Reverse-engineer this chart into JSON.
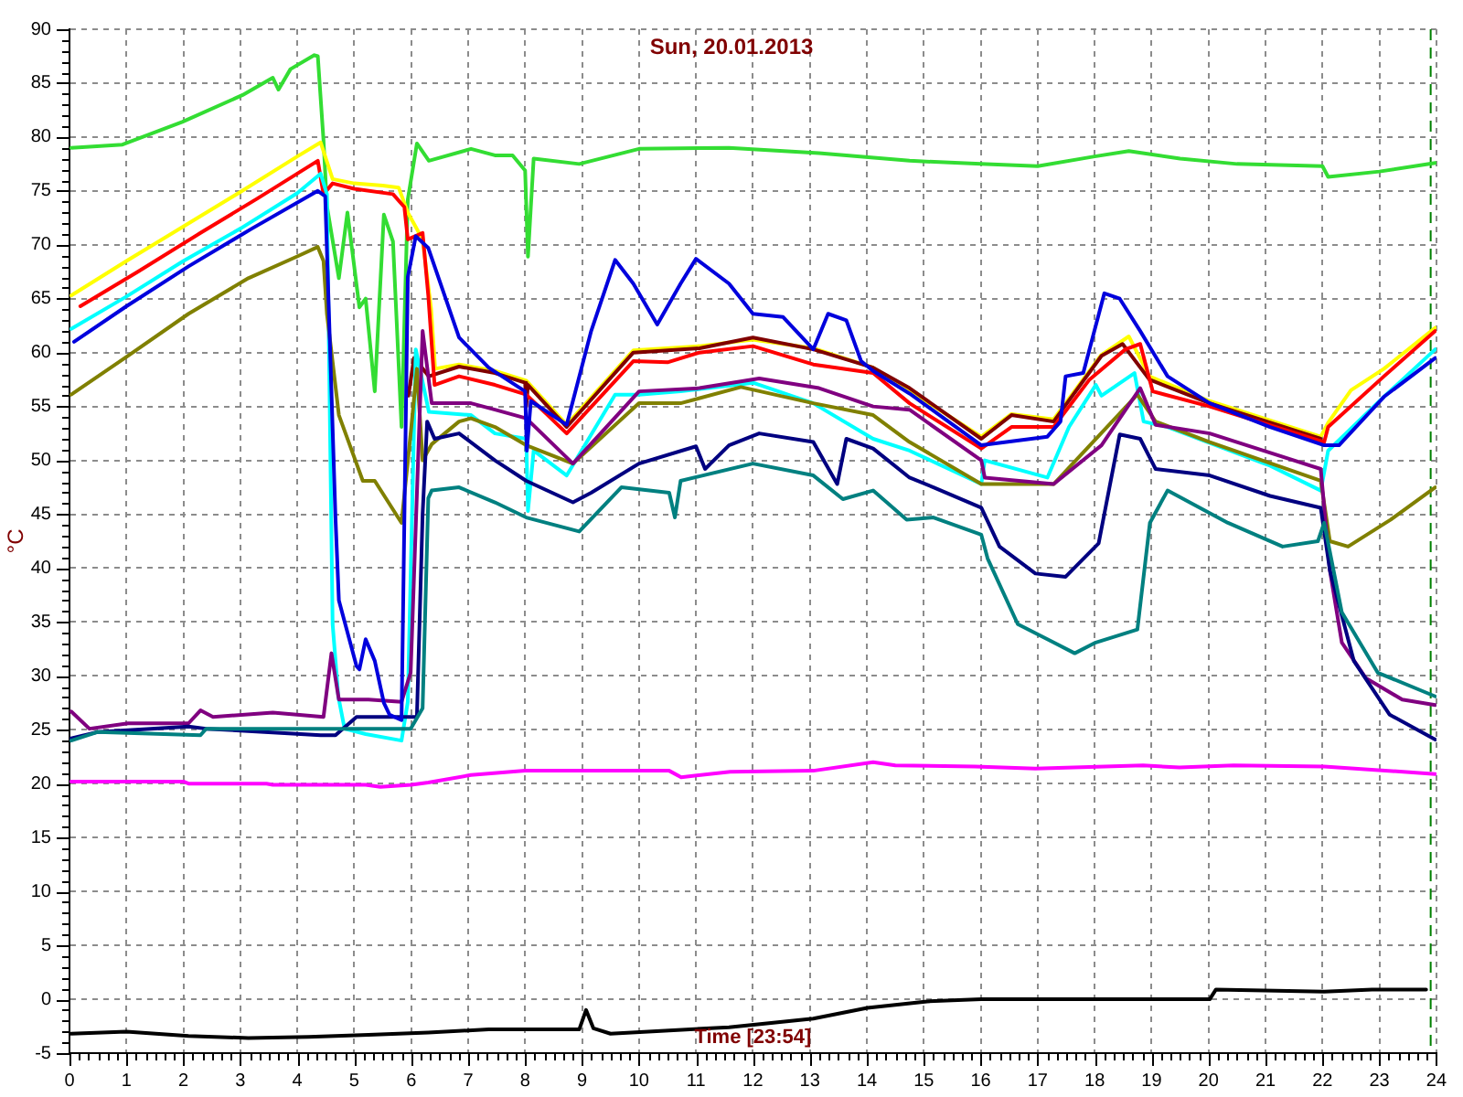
{
  "chart_data": {
    "type": "line",
    "title": "Sun, 20.01.2013",
    "xlabel": "Time [23:54]",
    "ylabel": "°C",
    "xlim": [
      0,
      24
    ],
    "xticks": [
      0,
      {
        "value": 0.167,
        "label": null
      },
      {
        "value": 0.333,
        "label": null
      },
      {
        "value": 0.5,
        "label": null
      },
      {
        "value": 0.667,
        "label": null
      },
      {
        "value": 0.833,
        "label": null
      },
      1,
      {
        "value": 1.167,
        "label": null
      },
      {
        "value": 1.333,
        "label": null
      },
      {
        "value": 1.5,
        "label": null
      },
      {
        "value": 1.667,
        "label": null
      },
      {
        "value": 1.833,
        "label": null
      },
      2,
      {
        "value": 2.167,
        "label": null
      },
      {
        "value": 2.333,
        "label": null
      },
      {
        "value": 2.5,
        "label": null
      },
      {
        "value": 2.667,
        "label": null
      },
      {
        "value": 2.833,
        "label": null
      },
      3,
      {
        "value": 3.167,
        "label": null
      },
      {
        "value": 3.333,
        "label": null
      },
      {
        "value": 3.5,
        "label": null
      },
      {
        "value": 3.667,
        "label": null
      },
      {
        "value": 3.833,
        "label": null
      },
      4,
      {
        "value": 4.167,
        "label": null
      },
      {
        "value": 4.333,
        "label": null
      },
      {
        "value": 4.5,
        "label": null
      },
      {
        "value": 4.667,
        "label": null
      },
      {
        "value": 4.833,
        "label": null
      },
      5,
      {
        "value": 5.167,
        "label": null
      },
      {
        "value": 5.333,
        "label": null
      },
      {
        "value": 5.5,
        "label": null
      },
      {
        "value": 5.667,
        "label": null
      },
      {
        "value": 5.833,
        "label": null
      },
      6,
      {
        "value": 6.167,
        "label": null
      },
      {
        "value": 6.333,
        "label": null
      },
      {
        "value": 6.5,
        "label": null
      },
      {
        "value": 6.667,
        "label": null
      },
      {
        "value": 6.833,
        "label": null
      },
      7,
      {
        "value": 7.167,
        "label": null
      },
      {
        "value": 7.333,
        "label": null
      },
      {
        "value": 7.5,
        "label": null
      },
      {
        "value": 7.667,
        "label": null
      },
      {
        "value": 7.833,
        "label": null
      },
      8,
      {
        "value": 8.167,
        "label": null
      },
      {
        "value": 8.333,
        "label": null
      },
      {
        "value": 8.5,
        "label": null
      },
      {
        "value": 8.667,
        "label": null
      },
      {
        "value": 8.833,
        "label": null
      },
      9,
      {
        "value": 9.167,
        "label": null
      },
      {
        "value": 9.333,
        "label": null
      },
      {
        "value": 9.5,
        "label": null
      },
      {
        "value": 9.667,
        "label": null
      },
      {
        "value": 9.833,
        "label": null
      },
      10,
      {
        "value": 10.167,
        "label": null
      },
      {
        "value": 10.333,
        "label": null
      },
      {
        "value": 10.5,
        "label": null
      },
      {
        "value": 10.667,
        "label": null
      },
      {
        "value": 10.833,
        "label": null
      },
      11,
      {
        "value": 11.167,
        "label": null
      },
      {
        "value": 11.333,
        "label": null
      },
      {
        "value": 11.5,
        "label": null
      },
      {
        "value": 11.667,
        "label": null
      },
      {
        "value": 11.833,
        "label": null
      },
      12,
      {
        "value": 12.167,
        "label": null
      },
      {
        "value": 12.333,
        "label": null
      },
      {
        "value": 12.5,
        "label": null
      },
      {
        "value": 12.667,
        "label": null
      },
      {
        "value": 12.833,
        "label": null
      },
      13,
      {
        "value": 13.167,
        "label": null
      },
      {
        "value": 13.333,
        "label": null
      },
      {
        "value": 13.5,
        "label": null
      },
      {
        "value": 13.667,
        "label": null
      },
      {
        "value": 13.833,
        "label": null
      },
      14,
      {
        "value": 14.167,
        "label": null
      },
      {
        "value": 14.333,
        "label": null
      },
      {
        "value": 14.5,
        "label": null
      },
      {
        "value": 14.667,
        "label": null
      },
      {
        "value": 14.833,
        "label": null
      },
      15,
      {
        "value": 15.167,
        "label": null
      },
      {
        "value": 15.333,
        "label": null
      },
      {
        "value": 15.5,
        "label": null
      },
      {
        "value": 15.667,
        "label": null
      },
      {
        "value": 15.833,
        "label": null
      },
      16,
      {
        "value": 16.167,
        "label": null
      },
      {
        "value": 16.333,
        "label": null
      },
      {
        "value": 16.5,
        "label": null
      },
      {
        "value": 16.667,
        "label": null
      },
      {
        "value": 16.833,
        "label": null
      },
      17,
      {
        "value": 17.167,
        "label": null
      },
      {
        "value": 17.333,
        "label": null
      },
      {
        "value": 17.5,
        "label": null
      },
      {
        "value": 17.667,
        "label": null
      },
      {
        "value": 17.833,
        "label": null
      },
      18,
      {
        "value": 18.167,
        "label": null
      },
      {
        "value": 18.333,
        "label": null
      },
      {
        "value": 18.5,
        "label": null
      },
      {
        "value": 18.667,
        "label": null
      },
      {
        "value": 18.833,
        "label": null
      },
      19,
      {
        "value": 19.167,
        "label": null
      },
      {
        "value": 19.333,
        "label": null
      },
      {
        "value": 19.5,
        "label": null
      },
      {
        "value": 19.667,
        "label": null
      },
      {
        "value": 19.833,
        "label": null
      },
      20,
      {
        "value": 20.167,
        "label": null
      },
      {
        "value": 20.333,
        "label": null
      },
      {
        "value": 20.5,
        "label": null
      },
      {
        "value": 20.667,
        "label": null
      },
      {
        "value": 20.833,
        "label": null
      },
      21,
      {
        "value": 21.167,
        "label": null
      },
      {
        "value": 21.333,
        "label": null
      },
      {
        "value": 21.5,
        "label": null
      },
      {
        "value": 21.667,
        "label": null
      },
      {
        "value": 21.833,
        "label": null
      },
      22,
      {
        "value": 22.167,
        "label": null
      },
      {
        "value": 22.333,
        "label": null
      },
      {
        "value": 22.5,
        "label": null
      },
      {
        "value": 22.667,
        "label": null
      },
      {
        "value": 22.833,
        "label": null
      },
      23,
      {
        "value": 23.167,
        "label": null
      },
      {
        "value": 23.333,
        "label": null
      },
      {
        "value": 23.5,
        "label": null
      },
      {
        "value": 23.667,
        "label": null
      },
      {
        "value": 23.833,
        "label": null
      },
      24
    ],
    "ylim": [
      -5,
      90
    ],
    "yticks": [
      -5,
      {
        "value": -4,
        "label": null
      },
      {
        "value": -3,
        "label": null
      },
      {
        "value": -2,
        "label": null
      },
      {
        "value": -1,
        "label": null
      },
      0,
      {
        "value": 1,
        "label": null
      },
      {
        "value": 2,
        "label": null
      },
      {
        "value": 3,
        "label": null
      },
      {
        "value": 4,
        "label": null
      },
      5,
      {
        "value": 6,
        "label": null
      },
      {
        "value": 7,
        "label": null
      },
      {
        "value": 8,
        "label": null
      },
      {
        "value": 9,
        "label": null
      },
      10,
      {
        "value": 11,
        "label": null
      },
      {
        "value": 12,
        "label": null
      },
      {
        "value": 13,
        "label": null
      },
      {
        "value": 14,
        "label": null
      },
      15,
      {
        "value": 16,
        "label": null
      },
      {
        "value": 17,
        "label": null
      },
      {
        "value": 18,
        "label": null
      },
      {
        "value": 19,
        "label": null
      },
      20,
      {
        "value": 21,
        "label": null
      },
      {
        "value": 22,
        "label": null
      },
      {
        "value": 23,
        "label": null
      },
      {
        "value": 24,
        "label": null
      },
      25,
      {
        "value": 26,
        "label": null
      },
      {
        "value": 27,
        "label": null
      },
      {
        "value": 28,
        "label": null
      },
      {
        "value": 29,
        "label": null
      },
      30,
      {
        "value": 31,
        "label": null
      },
      {
        "value": 32,
        "label": null
      },
      {
        "value": 33,
        "label": null
      },
      {
        "value": 34,
        "label": null
      },
      35,
      {
        "value": 36,
        "label": null
      },
      {
        "value": 37,
        "label": null
      },
      {
        "value": 38,
        "label": null
      },
      {
        "value": 39,
        "label": null
      },
      40,
      {
        "value": 41,
        "label": null
      },
      {
        "value": 42,
        "label": null
      },
      {
        "value": 43,
        "label": null
      },
      {
        "value": 44,
        "label": null
      },
      45,
      {
        "value": 46,
        "label": null
      },
      {
        "value": 47,
        "label": null
      },
      {
        "value": 48,
        "label": null
      },
      {
        "value": 49,
        "label": null
      },
      50,
      {
        "value": 51,
        "label": null
      },
      {
        "value": 52,
        "label": null
      },
      {
        "value": 53,
        "label": null
      },
      {
        "value": 54,
        "label": null
      },
      55,
      {
        "value": 56,
        "label": null
      },
      {
        "value": 57,
        "label": null
      },
      {
        "value": 58,
        "label": null
      },
      {
        "value": 59,
        "label": null
      },
      60,
      {
        "value": 61,
        "label": null
      },
      {
        "value": 62,
        "label": null
      },
      {
        "value": 63,
        "label": null
      },
      {
        "value": 64,
        "label": null
      },
      65,
      {
        "value": 66,
        "label": null
      },
      {
        "value": 67,
        "label": null
      },
      {
        "value": 68,
        "label": null
      },
      {
        "value": 69,
        "label": null
      },
      70,
      {
        "value": 71,
        "label": null
      },
      {
        "value": 72,
        "label": null
      },
      {
        "value": 73,
        "label": null
      },
      {
        "value": 74,
        "label": null
      },
      75,
      {
        "value": 76,
        "label": null
      },
      {
        "value": 77,
        "label": null
      },
      {
        "value": 78,
        "label": null
      },
      {
        "value": 79,
        "label": null
      },
      80,
      {
        "value": 81,
        "label": null
      },
      {
        "value": 82,
        "label": null
      },
      {
        "value": 83,
        "label": null
      },
      {
        "value": 84,
        "label": null
      },
      85,
      {
        "value": 86,
        "label": null
      },
      {
        "value": 87,
        "label": null
      },
      {
        "value": 88,
        "label": null
      },
      {
        "value": 89,
        "label": null
      },
      90
    ],
    "grid": true,
    "legend": false,
    "ref_lines": [
      {
        "axis": "x",
        "value": 23.9,
        "color": "#008000",
        "line_style": "dashed"
      }
    ],
    "series": [
      {
        "color": "#33dd33",
        "x": [
          0.03,
          0.93,
          1.98,
          3.04,
          3.57,
          3.67,
          3.88,
          4.3,
          4.36,
          4.46,
          4.52,
          4.73,
          4.88,
          5.09,
          5.2,
          5.36,
          5.52,
          5.68,
          5.83,
          5.94,
          6.1,
          6.31,
          7.05,
          7.47,
          7.78,
          8.0,
          8.05,
          8.15,
          8.95,
          10.0,
          11.58,
          13.16,
          14.75,
          16.0,
          17.0,
          18.0,
          18.6,
          19.5,
          20.5,
          22.0,
          22.1,
          23.0,
          23.98
        ],
        "values": [
          79.0,
          79.3,
          81.4,
          83.9,
          85.5,
          84.4,
          86.3,
          87.6,
          87.5,
          79.7,
          73.6,
          66.9,
          73.0,
          64.2,
          65.0,
          56.4,
          72.8,
          70.3,
          53.1,
          74.2,
          79.4,
          77.8,
          78.9,
          78.3,
          78.3,
          76.9,
          68.9,
          78.0,
          77.5,
          78.9,
          79.0,
          78.5,
          77.8,
          77.5,
          77.3,
          78.2,
          78.7,
          78.0,
          77.5,
          77.3,
          76.3,
          76.8,
          77.6
        ]
      },
      {
        "color": "#ffff00",
        "x": [
          0.03,
          1.0,
          2.0,
          3.0,
          4.0,
          4.41,
          4.62,
          5.0,
          5.5,
          5.78,
          5.94,
          6.2,
          6.35,
          6.42,
          6.84,
          7.47,
          8.02,
          8.73,
          9.9,
          11.06,
          12.0,
          13.06,
          14.11,
          16.01,
          16.54,
          17.28,
          18.12,
          18.6,
          18.96,
          20.02,
          21.97,
          22.1,
          22.5,
          23.08,
          23.98
        ],
        "values": [
          65.3,
          68.5,
          71.7,
          74.9,
          78.2,
          79.5,
          76.1,
          75.7,
          75.5,
          75.3,
          73.0,
          70.5,
          64.0,
          58.5,
          58.9,
          58.3,
          57.4,
          53.3,
          60.2,
          60.6,
          61.2,
          60.4,
          58.6,
          52.2,
          54.3,
          53.8,
          59.8,
          61.5,
          57.8,
          55.5,
          52.2,
          53.5,
          56.5,
          58.5,
          62.3
        ]
      },
      {
        "color": "#800000",
        "x": [
          5.95,
          6.05,
          6.31,
          6.84,
          7.47,
          8.0,
          8.02,
          8.05,
          8.73,
          9.9,
          11.06,
          12.0,
          13.06,
          14.11,
          14.75,
          16.01,
          16.54,
          17.28,
          18.12,
          18.49,
          18.96,
          20.02,
          21.97
        ],
        "values": [
          56.0,
          59.5,
          57.8,
          58.7,
          58.1,
          57.2,
          55.0,
          57.0,
          53.1,
          60.0,
          60.4,
          61.4,
          60.3,
          58.6,
          56.7,
          52.0,
          54.2,
          53.6,
          59.7,
          60.8,
          57.5,
          55.3,
          52.0
        ]
      },
      {
        "color": "#ff0000",
        "x": [
          0.19,
          1.2,
          2.3,
          3.3,
          4.36,
          4.46,
          4.62,
          5.0,
          5.68,
          5.88,
          5.94,
          6.2,
          6.3,
          6.41,
          6.84,
          7.47,
          8.02,
          8.73,
          9.9,
          10.5,
          11.06,
          12.0,
          13.06,
          14.11,
          14.75,
          16.01,
          16.54,
          17.28,
          17.91,
          18.54,
          18.8,
          19.02,
          20.02,
          22.03,
          22.1,
          23.08,
          23.98
        ],
        "values": [
          64.3,
          67.5,
          71.1,
          74.3,
          77.8,
          74.7,
          75.7,
          75.2,
          74.7,
          73.5,
          70.5,
          71.1,
          65.3,
          57.0,
          57.8,
          57.0,
          56.1,
          52.5,
          59.2,
          59.1,
          60.0,
          60.6,
          58.9,
          58.1,
          55.3,
          51.1,
          53.1,
          53.1,
          57.5,
          60.3,
          60.8,
          56.4,
          55.0,
          51.7,
          53.1,
          57.8,
          62.0
        ]
      },
      {
        "color": "#00ffff",
        "x": [
          0.03,
          1.0,
          2.0,
          3.0,
          4.0,
          4.41,
          4.52,
          4.62,
          4.72,
          4.83,
          5.2,
          5.83,
          5.94,
          6.08,
          6.31,
          7.05,
          7.47,
          8.02,
          8.05,
          8.15,
          8.73,
          9.58,
          10.0,
          10.73,
          12.0,
          13.06,
          14.11,
          14.75,
          16.01,
          16.07,
          17.17,
          17.55,
          18.02,
          18.12,
          18.7,
          18.86,
          19.28,
          21.08,
          21.97,
          22.1,
          23.0,
          23.98
        ],
        "values": [
          62.2,
          65.2,
          68.5,
          71.5,
          74.8,
          76.6,
          74.7,
          34.8,
          28.1,
          25.1,
          24.6,
          24.0,
          27.6,
          60.3,
          54.5,
          54.2,
          52.5,
          52.0,
          45.3,
          50.9,
          48.6,
          56.1,
          56.1,
          56.4,
          57.2,
          55.3,
          52.0,
          50.9,
          47.8,
          50.0,
          48.4,
          53.1,
          57.0,
          56.0,
          58.1,
          53.6,
          53.1,
          49.5,
          47.2,
          50.9,
          55.5,
          60.3
        ]
      },
      {
        "color": "#808000",
        "x": [
          0.03,
          1.03,
          2.09,
          3.14,
          3.99,
          4.36,
          4.46,
          4.52,
          4.73,
          5.15,
          5.36,
          5.83,
          6.0,
          6.1,
          6.2,
          6.36,
          6.84,
          7.05,
          7.47,
          8.02,
          8.84,
          10.0,
          10.73,
          11.79,
          13.06,
          14.11,
          14.75,
          16.01,
          17.28,
          18.75,
          19.07,
          20.02,
          21.97,
          22.13,
          22.45,
          23.2,
          23.98
        ],
        "values": [
          56.1,
          59.7,
          63.6,
          66.9,
          68.9,
          69.8,
          68.5,
          63.6,
          54.2,
          48.1,
          48.1,
          44.2,
          53.0,
          58.5,
          50.0,
          51.5,
          53.6,
          53.9,
          53.1,
          51.4,
          49.7,
          55.3,
          55.3,
          56.8,
          55.3,
          54.2,
          51.7,
          47.8,
          47.8,
          56.1,
          53.6,
          51.7,
          48.1,
          42.5,
          42.0,
          44.5,
          47.5
        ]
      },
      {
        "color": "#800080",
        "x": [
          0.03,
          0.35,
          1.03,
          2.09,
          2.3,
          2.52,
          3.57,
          4.46,
          4.6,
          4.73,
          5.25,
          5.83,
          5.99,
          6.2,
          6.36,
          7.05,
          7.47,
          8.02,
          8.84,
          10.0,
          11.06,
          12.11,
          13.16,
          14.11,
          14.75,
          16.01,
          16.07,
          17.28,
          18.12,
          18.8,
          19.07,
          20.02,
          21.97,
          22.13,
          22.34,
          22.76,
          23.4,
          23.98
        ],
        "values": [
          26.7,
          25.1,
          25.6,
          25.6,
          26.8,
          26.2,
          26.6,
          26.2,
          32.1,
          27.8,
          27.8,
          27.6,
          30.3,
          62.0,
          55.3,
          55.3,
          54.7,
          53.9,
          49.7,
          56.4,
          56.7,
          57.6,
          56.7,
          55.0,
          54.7,
          50.0,
          48.4,
          47.8,
          51.4,
          56.7,
          53.3,
          52.5,
          49.2,
          39.8,
          33.1,
          29.8,
          27.8,
          27.3
        ]
      },
      {
        "color": "#000080",
        "x": [
          0.03,
          0.5,
          2.09,
          2.4,
          4.41,
          4.67,
          5.04,
          6.1,
          6.2,
          6.28,
          6.41,
          6.84,
          7.47,
          8.02,
          8.84,
          9.16,
          10.0,
          11.0,
          11.16,
          11.58,
          12.11,
          13.06,
          13.48,
          13.64,
          14.11,
          14.75,
          15.17,
          16.01,
          16.33,
          16.96,
          17.49,
          18.07,
          18.44,
          18.8,
          19.07,
          20.02,
          21.08,
          21.97,
          22.13,
          22.55,
          23.18,
          23.98
        ],
        "values": [
          24.2,
          24.8,
          25.3,
          25.1,
          24.5,
          24.5,
          26.2,
          26.2,
          45.0,
          53.6,
          52.0,
          52.5,
          50.0,
          48.1,
          46.1,
          47.0,
          49.7,
          51.3,
          49.2,
          51.4,
          52.5,
          51.7,
          47.8,
          52.0,
          51.1,
          48.4,
          47.5,
          45.6,
          42.0,
          39.5,
          39.2,
          42.3,
          52.4,
          52.0,
          49.2,
          48.6,
          46.7,
          45.6,
          39.8,
          31.4,
          26.4,
          24.1
        ]
      },
      {
        "color": "#008080",
        "x": [
          0.03,
          0.5,
          2.3,
          2.4,
          4.41,
          5.99,
          6.2,
          6.3,
          6.36,
          6.84,
          7.47,
          8.02,
          8.95,
          9.69,
          10.53,
          10.63,
          10.73,
          12.0,
          13.06,
          13.58,
          14.11,
          14.7,
          15.17,
          16.01,
          16.12,
          16.65,
          17.28,
          17.65,
          18.02,
          18.75,
          18.97,
          19.28,
          20.34,
          21.3,
          21.92,
          22.03,
          22.34,
          22.97,
          23.98
        ],
        "values": [
          24.0,
          24.8,
          24.5,
          25.1,
          25.1,
          25.1,
          27.0,
          46.5,
          47.2,
          47.5,
          46.1,
          44.7,
          43.4,
          47.5,
          47.0,
          44.7,
          48.1,
          49.7,
          48.6,
          46.4,
          47.2,
          44.5,
          44.7,
          43.1,
          40.9,
          34.8,
          33.1,
          32.1,
          33.1,
          34.3,
          44.2,
          47.2,
          44.2,
          42.0,
          42.5,
          44.2,
          35.9,
          30.3,
          28.1
        ]
      },
      {
        "color": "#0000dd",
        "x": [
          0.08,
          1.0,
          2.09,
          3.2,
          4.36,
          4.49,
          4.67,
          4.73,
          5.04,
          5.09,
          5.2,
          5.36,
          5.52,
          5.62,
          5.83,
          5.94,
          6.08,
          6.3,
          6.84,
          7.36,
          8.0,
          8.03,
          8.1,
          8.73,
          9.16,
          9.58,
          9.9,
          10.32,
          10.73,
          11.0,
          11.58,
          12.0,
          12.53,
          13.06,
          13.32,
          13.64,
          13.9,
          14.11,
          14.75,
          16.01,
          17.17,
          17.4,
          17.49,
          17.8,
          18.17,
          18.44,
          18.8,
          19.28,
          20.02,
          21.08,
          22.03,
          22.29,
          23.08,
          23.98
        ],
        "values": [
          61.0,
          64.3,
          68.0,
          71.5,
          75.0,
          74.5,
          44.7,
          37.0,
          30.9,
          30.6,
          33.4,
          31.4,
          27.5,
          26.4,
          25.9,
          67.0,
          70.8,
          69.7,
          61.4,
          58.6,
          56.4,
          50.9,
          55.5,
          53.3,
          62.0,
          68.6,
          66.4,
          62.6,
          66.4,
          68.7,
          66.4,
          63.6,
          63.3,
          60.3,
          63.6,
          63.0,
          59.2,
          58.3,
          56.2,
          51.4,
          52.2,
          53.6,
          57.8,
          58.1,
          65.5,
          65.0,
          62.0,
          57.8,
          55.3,
          53.1,
          51.4,
          51.4,
          55.9,
          59.5
        ]
      },
      {
        "color": "#ff00ff",
        "x": [
          0.03,
          2.0,
          2.1,
          3.46,
          3.57,
          5.2,
          5.46,
          6.0,
          6.3,
          7.05,
          8.0,
          9.05,
          10.53,
          10.74,
          11.6,
          13.06,
          14.11,
          14.5,
          15.9,
          16.96,
          18.85,
          19.49,
          20.44,
          22.03,
          23.98
        ],
        "values": [
          20.2,
          20.2,
          20.0,
          20.0,
          19.9,
          19.9,
          19.7,
          19.9,
          20.1,
          20.8,
          21.2,
          21.2,
          21.2,
          20.6,
          21.1,
          21.2,
          22.0,
          21.7,
          21.6,
          21.4,
          21.7,
          21.5,
          21.7,
          21.6,
          20.9
        ]
      },
      {
        "color": "#000000",
        "x": [
          0.03,
          1.0,
          2.09,
          3.14,
          4.2,
          5.25,
          6.3,
          7.36,
          8.95,
          9.07,
          9.2,
          9.5,
          10.53,
          11.58,
          13.06,
          14.01,
          15.06,
          16.01,
          20.02,
          20.13,
          22.03,
          22.87,
          23.82
        ],
        "values": [
          -3.2,
          -3.0,
          -3.4,
          -3.6,
          -3.5,
          -3.3,
          -3.1,
          -2.8,
          -2.8,
          -1.0,
          -2.7,
          -3.2,
          -2.9,
          -2.6,
          -1.8,
          -0.8,
          -0.2,
          0.0,
          0.0,
          0.9,
          0.7,
          0.9,
          0.9
        ]
      }
    ]
  }
}
